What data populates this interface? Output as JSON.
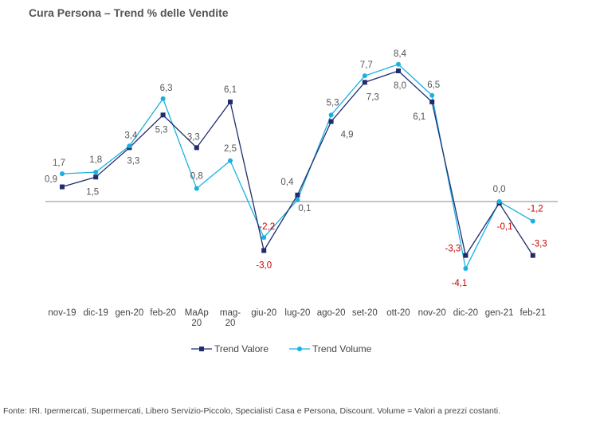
{
  "title": "Cura Persona –  Trend % delle Vendite",
  "source": "Fonte: IRI. Ipermercati, Supermercati, Libero Servizio-Piccolo,  Specialisti Casa e Persona, Discount.  Volume =  Valori a prezzi  costanti.",
  "colors": {
    "valore": "#1f2d6e",
    "volume": "#1ab0e0",
    "axis": "#888888",
    "negative": "#cc0000"
  },
  "chart_data": {
    "type": "line",
    "categories": [
      "nov-19",
      "dic-19",
      "gen-20",
      "feb-20",
      "MaAp\n20",
      "mag-\n20",
      "giu-20",
      "lug-20",
      "ago-20",
      "set-20",
      "ott-20",
      "nov-20",
      "dic-20",
      "gen-21",
      "feb-21"
    ],
    "series": [
      {
        "name": "Trend Valore",
        "marker": "square",
        "values": [
          0.9,
          1.5,
          3.3,
          5.3,
          3.3,
          6.1,
          -3.0,
          0.4,
          4.9,
          7.3,
          8.0,
          6.1,
          -3.3,
          -0.1,
          -3.3
        ]
      },
      {
        "name": "Trend Volume",
        "marker": "circle",
        "values": [
          1.7,
          1.8,
          3.4,
          6.3,
          0.8,
          2.5,
          -2.2,
          0.1,
          5.3,
          7.7,
          8.4,
          6.5,
          -4.1,
          0.0,
          -1.2
        ]
      }
    ],
    "data_labels": {
      "valore": [
        "0,9",
        "1,5",
        "3,3",
        "5,3",
        "3,3",
        "6,1",
        "-3,0",
        "0,4",
        "4,9",
        "7,3",
        "8,0",
        "6,1",
        "-3,3",
        "-0,1",
        "-3,3"
      ],
      "volume": [
        "1,7",
        "1,8",
        "3,4",
        "6,3",
        "0,8",
        "2,5",
        "-2,2",
        "0,1",
        "5,3",
        "7,7",
        "8,4",
        "6,5",
        "-4,1",
        "0,0",
        "-1,2"
      ]
    },
    "ylim": [
      -5,
      9.5
    ],
    "grid": false,
    "legend_position": "bottom"
  }
}
